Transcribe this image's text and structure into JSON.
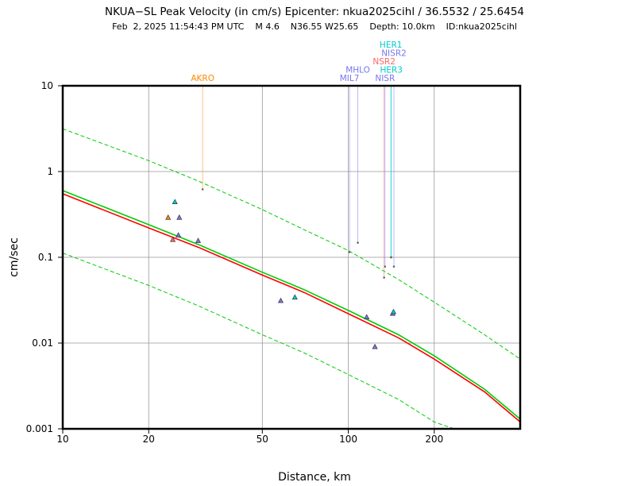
{
  "chart_data": {
    "type": "scatter",
    "title": "NKUA−SL Peak Velocity (in cm/s) Epicenter: nkua2025cihl / 36.5532 / 25.6454",
    "subtitle": "Feb  2, 2025 11:54:43 PM UTC    M 4.6    N36.55 W25.65    Depth: 10.0km    ID:nkua2025cihl",
    "xlabel": "Distance, km",
    "ylabel": "cm/sec",
    "x_scale": "log",
    "y_scale": "log",
    "xlim": [
      10,
      400
    ],
    "ylim": [
      0.001,
      10
    ],
    "x_ticks": [
      {
        "value": 10,
        "label": "10"
      },
      {
        "value": 20,
        "label": "20"
      },
      {
        "value": 50,
        "label": "50"
      },
      {
        "value": 100,
        "label": "100"
      },
      {
        "value": 200,
        "label": "200"
      }
    ],
    "y_ticks": [
      {
        "value": 0.001,
        "label": "0.001"
      },
      {
        "value": 0.01,
        "label": "0.01"
      },
      {
        "value": 0.1,
        "label": "0.1"
      },
      {
        "value": 1,
        "label": "1"
      },
      {
        "value": 10,
        "label": "10"
      }
    ],
    "grid": true,
    "curves": [
      {
        "role": "median",
        "color": "#ff0000",
        "style": "solid",
        "x": [
          10,
          20,
          30,
          50,
          70,
          100,
          150,
          200,
          300,
          400
        ],
        "y": [
          0.55,
          0.22,
          0.13,
          0.062,
          0.039,
          0.022,
          0.0115,
          0.0065,
          0.0027,
          0.0012
        ]
      },
      {
        "role": "median-alt",
        "color": "#00cc00",
        "style": "solid",
        "x": [
          10,
          20,
          30,
          50,
          70,
          100,
          150,
          200,
          300,
          400
        ],
        "y": [
          0.6,
          0.24,
          0.14,
          0.067,
          0.042,
          0.024,
          0.0125,
          0.0071,
          0.0029,
          0.0013
        ]
      },
      {
        "role": "upper",
        "color": "#00cc00",
        "style": "dashed",
        "x": [
          10,
          20,
          30,
          50,
          70,
          100,
          150,
          200,
          300,
          400
        ],
        "y": [
          3.15,
          1.34,
          0.77,
          0.36,
          0.21,
          0.12,
          0.055,
          0.03,
          0.0125,
          0.0065
        ]
      },
      {
        "role": "lower",
        "color": "#00cc00",
        "style": "dashed",
        "x": [
          10,
          20,
          30,
          50,
          70,
          100,
          150,
          200,
          235
        ],
        "y": [
          0.112,
          0.047,
          0.027,
          0.0125,
          0.0077,
          0.0043,
          0.0022,
          0.0012,
          0.001
        ]
      }
    ],
    "stations": [
      {
        "x": 23.4,
        "y": 0.29,
        "color": "#ff8800"
      },
      {
        "x": 24.7,
        "y": 0.44,
        "color": "#00cccc"
      },
      {
        "x": 25.6,
        "y": 0.29,
        "color": "#7777ee"
      },
      {
        "x": 24.3,
        "y": 0.16,
        "color": "#ff6666"
      },
      {
        "x": 25.4,
        "y": 0.18,
        "color": "#7777ee"
      },
      {
        "x": 29.8,
        "y": 0.155,
        "color": "#7777ee"
      },
      {
        "x": 58.0,
        "y": 0.031,
        "color": "#7777ee"
      },
      {
        "x": 65.0,
        "y": 0.034,
        "color": "#00cccc"
      },
      {
        "x": 116.0,
        "y": 0.02,
        "color": "#7777ee"
      },
      {
        "x": 124.0,
        "y": 0.009,
        "color": "#7777ee"
      },
      {
        "x": 143.0,
        "y": 0.022,
        "color": "#7777ee"
      },
      {
        "x": 144.0,
        "y": 0.023,
        "color": "#00cccc"
      }
    ],
    "flagged_stations": [
      {
        "name": "AKRO",
        "x": 30.9,
        "y": 0.62,
        "color": "#ff8800",
        "label_row": 0
      },
      {
        "name": "MIL7",
        "x": 101.0,
        "y": 0.115,
        "color": "#7777ee",
        "label_row": 0
      },
      {
        "name": "MHLO",
        "x": 108.0,
        "y": 0.148,
        "color": "#7777ee",
        "label_row": 1
      },
      {
        "name": "NISR",
        "x": 134.5,
        "y": 0.078,
        "color": "#7777ee",
        "label_row": 0
      },
      {
        "name": "HER3",
        "x": 141.5,
        "y": 0.1,
        "color": "#00cccc",
        "label_row": 1
      },
      {
        "name": "NSR2",
        "x": 133.5,
        "y": 0.058,
        "color": "#ff6666",
        "label_row": 2
      },
      {
        "name": "NISR2",
        "x": 144.5,
        "y": 0.078,
        "color": "#7777ee",
        "label_row": 3
      },
      {
        "name": "HER1",
        "x": 141.0,
        "y": 0.1,
        "color": "#00cccc",
        "label_row": 4
      }
    ]
  }
}
